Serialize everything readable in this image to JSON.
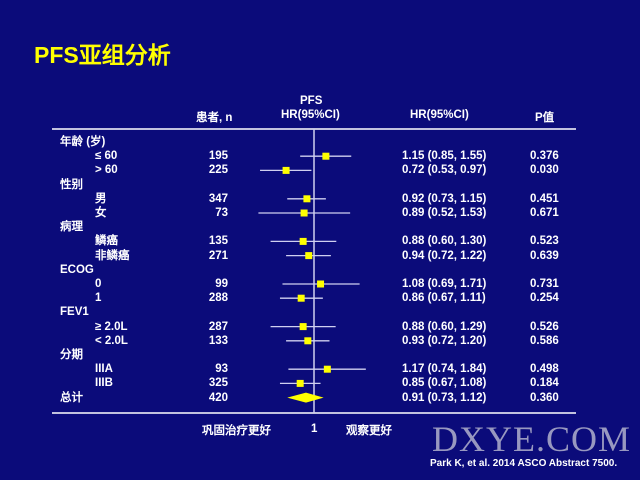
{
  "title": "PFS亚组分析",
  "headers": {
    "n": "患者, n",
    "plot_top": "PFS",
    "plot": "HR(95%CI)",
    "hr": "HR(95%CI)",
    "p": "P值"
  },
  "chart_data": {
    "type": "forest",
    "x_scale": "log",
    "reference_line": 1,
    "x_tick_labels": [
      "1"
    ],
    "left_label": "巩固治疗更好",
    "right_label": "观察更好",
    "rows": [
      {
        "label": "年龄 (岁)",
        "group": true
      },
      {
        "label": "≤ 60",
        "n": "195",
        "hr": 1.15,
        "lo": 0.85,
        "hi": 1.55,
        "hr_text": "1.15 (0.85, 1.55)",
        "p": "0.376"
      },
      {
        "label": "> 60",
        "n": "225",
        "hr": 0.72,
        "lo": 0.53,
        "hi": 0.97,
        "hr_text": "0.72 (0.53, 0.97)",
        "p": "0.030"
      },
      {
        "label": "性别",
        "group": true
      },
      {
        "label": "男",
        "n": "347",
        "hr": 0.92,
        "lo": 0.73,
        "hi": 1.15,
        "hr_text": "0.92 (0.73, 1.15)",
        "p": "0.451"
      },
      {
        "label": "女",
        "n": "73",
        "hr": 0.89,
        "lo": 0.52,
        "hi": 1.53,
        "hr_text": "0.89 (0.52, 1.53)",
        "p": "0.671"
      },
      {
        "label": "病理",
        "group": true
      },
      {
        "label": "鳞癌",
        "n": "135",
        "hr": 0.88,
        "lo": 0.6,
        "hi": 1.3,
        "hr_text": "0.88 (0.60, 1.30)",
        "p": "0.523"
      },
      {
        "label": "非鳞癌",
        "n": "271",
        "hr": 0.94,
        "lo": 0.72,
        "hi": 1.22,
        "hr_text": "0.94 (0.72, 1.22)",
        "p": "0.639"
      },
      {
        "label": "ECOG",
        "group": true
      },
      {
        "label": "0",
        "n": "99",
        "hr": 1.08,
        "lo": 0.69,
        "hi": 1.71,
        "hr_text": "1.08 (0.69, 1.71)",
        "p": "0.731"
      },
      {
        "label": "1",
        "n": "288",
        "hr": 0.86,
        "lo": 0.67,
        "hi": 1.11,
        "hr_text": "0.86 (0.67, 1.11)",
        "p": "0.254"
      },
      {
        "label": "FEV1",
        "group": true
      },
      {
        "label": "≥ 2.0L",
        "n": "287",
        "hr": 0.88,
        "lo": 0.6,
        "hi": 1.29,
        "hr_text": "0.88 (0.60, 1.29)",
        "p": "0.526"
      },
      {
        "label": "< 2.0L",
        "n": "133",
        "hr": 0.93,
        "lo": 0.72,
        "hi": 1.2,
        "hr_text": "0.93 (0.72, 1.20)",
        "p": "0.586"
      },
      {
        "label": "分期",
        "group": true
      },
      {
        "label": "IIIA",
        "n": "93",
        "hr": 1.17,
        "lo": 0.74,
        "hi": 1.84,
        "hr_text": "1.17 (0.74, 1.84)",
        "p": "0.498"
      },
      {
        "label": "IIIB",
        "n": "325",
        "hr": 0.85,
        "lo": 0.67,
        "hi": 1.08,
        "hr_text": "0.85 (0.67, 1.08)",
        "p": "0.184"
      },
      {
        "label": "总计",
        "group": true,
        "total": true,
        "n": "420",
        "hr": 0.91,
        "lo": 0.73,
        "hi": 1.12,
        "hr_text": "0.91 (0.73, 1.12)",
        "p": "0.360"
      }
    ]
  },
  "colors": {
    "background": "#0b0b7a",
    "title": "#ffff00",
    "marker": "#ffff00",
    "lines": "#d0d0f0"
  },
  "watermark": "DXYE.COM",
  "citation": "Park K, et al. 2014 ASCO Abstract 7500."
}
